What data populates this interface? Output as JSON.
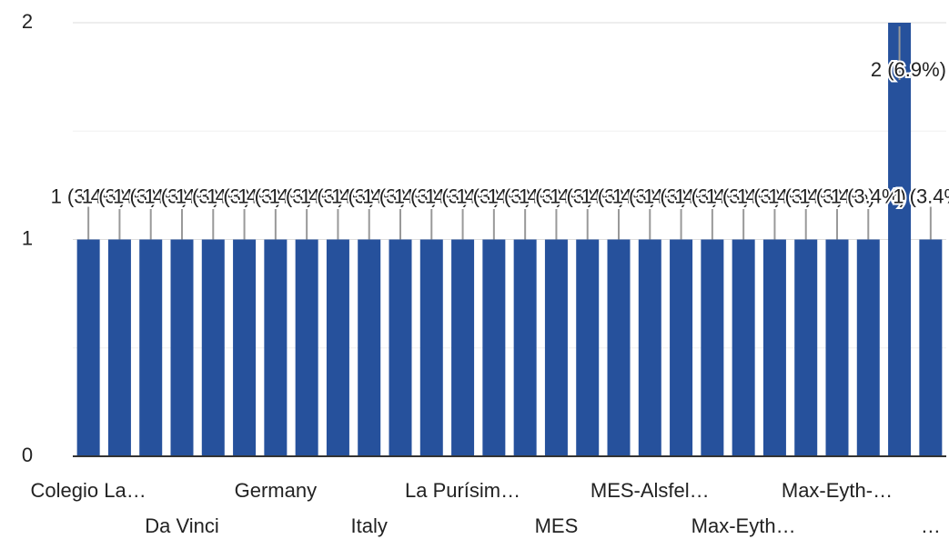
{
  "chart_data": {
    "type": "bar",
    "categories": [
      "Colegio La…",
      null,
      null,
      "Da Vinci",
      null,
      null,
      "Germany",
      null,
      null,
      "Italy",
      null,
      null,
      "La Purísim…",
      null,
      null,
      "MES",
      null,
      null,
      "MES-Alsfel…",
      null,
      null,
      "Max-Eyth…",
      null,
      null,
      "Max-Eyth-…",
      null,
      null,
      "…"
    ],
    "values": [
      1,
      1,
      1,
      1,
      1,
      1,
      1,
      1,
      1,
      1,
      1,
      1,
      1,
      1,
      1,
      1,
      1,
      1,
      1,
      1,
      1,
      1,
      1,
      1,
      1,
      1,
      2,
      1
    ],
    "value_labels": [
      "1 (3.4%)",
      "1 (3.4%)",
      "1 (3.4%)",
      "1 (3.4%)",
      "1 (3.4%)",
      "1 (3.4%)",
      "1 (3.4%)",
      "1 (3.4%)",
      "1 (3.4%)",
      "1 (3.4%)",
      "1 (3.4%)",
      "1 (3.4%)",
      "1 (3.4%)",
      "1 (3.4%)",
      "1 (3.4%)",
      "1 (3.4%)",
      "1 (3.4%)",
      "1 (3.4%)",
      "1 (3.4%)",
      "1 (3.4%)",
      "1 (3.4%)",
      "1 (3.4%)",
      "1 (3.4%)",
      "1 (3.4%)",
      "1 (3.4%)",
      "1 (3.4%)",
      "2 (6.9%)",
      "1 (3.4%)"
    ],
    "color": "#26519c",
    "ylim": [
      0,
      2
    ],
    "yticks": [
      0,
      1,
      2
    ],
    "minor_yticks": [
      0.5,
      1.5
    ],
    "grid": true
  }
}
